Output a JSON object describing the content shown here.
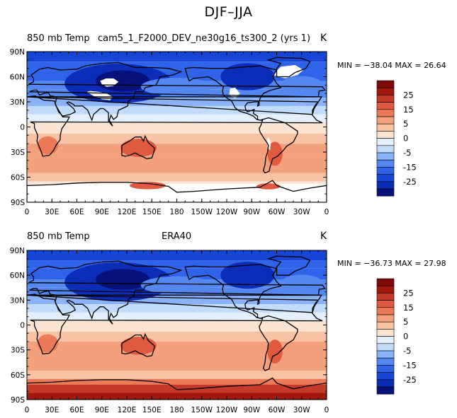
{
  "title": "DJF–JJA",
  "colors": {
    "scale": [
      "#08107a",
      "#0b2db8",
      "#1746d6",
      "#2f63ea",
      "#5587f0",
      "#8ab2f6",
      "#c3dbfb",
      "#e4f0fd",
      "#fbe4d2",
      "#f8c3a4",
      "#f3a07c",
      "#ec7a58",
      "#df5a3e",
      "#c63a29",
      "#a2180f",
      "#7d0a08"
    ],
    "missing": "#ffffff",
    "coast": "#000000"
  },
  "colorbar": {
    "labels": [
      "25",
      "15",
      "5",
      "0",
      "-5",
      "-15",
      "-25"
    ]
  },
  "axes": {
    "lat_labels": [
      "90N",
      "60N",
      "30N",
      "0",
      "30S",
      "60S",
      "90S"
    ],
    "lon_labels": [
      "0",
      "30E",
      "60E",
      "90E",
      "120E",
      "150E",
      "180",
      "150W",
      "120W",
      "90W",
      "60W",
      "30W",
      "0"
    ]
  },
  "panels": [
    {
      "left_title": "850  mb Temp",
      "center_title": "cam5_1_F2000_DEV_ne30g16_ts300_2 (yrs 1)",
      "unit": "K",
      "minmax": "MIN = −38.04  MAX =  26.64",
      "min": -38.04,
      "max": 26.64
    },
    {
      "left_title": "850  mb Temp",
      "center_title": "ERA40",
      "unit": "K",
      "minmax": "MIN = −36.73  MAX =  27.98",
      "min": -36.73,
      "max": 27.98
    }
  ]
}
